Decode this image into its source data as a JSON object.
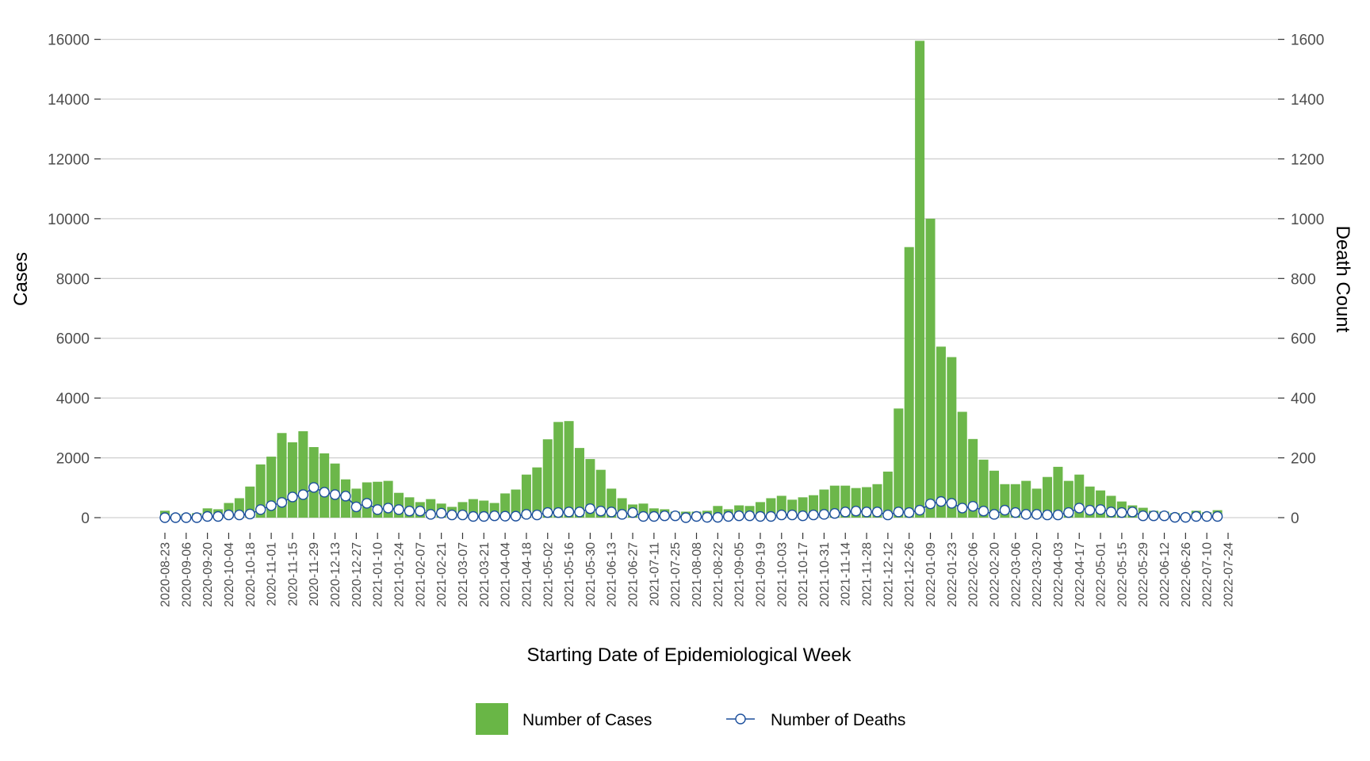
{
  "chart_data": {
    "type": "bar",
    "title": "",
    "xlabel": "Starting Date of Epidemiological Week",
    "ylabel": "Cases",
    "y2label": "Death Count",
    "ylim": [
      0,
      16000
    ],
    "y2lim": [
      0,
      1600
    ],
    "yticks": [
      0,
      2000,
      4000,
      6000,
      8000,
      10000,
      12000,
      14000,
      16000
    ],
    "y2ticks": [
      0,
      200,
      400,
      600,
      800,
      1000,
      1200,
      1400,
      1600
    ],
    "grid": true,
    "legend_position": "bottom",
    "xtick_labels": [
      "2020-08-23",
      "2020-09-06",
      "2020-09-20",
      "2020-10-04",
      "2020-10-18",
      "2020-11-01",
      "2020-11-15",
      "2020-11-29",
      "2020-12-13",
      "2020-12-27",
      "2021-01-10",
      "2021-01-24",
      "2021-02-07",
      "2021-02-21",
      "2021-03-07",
      "2021-03-21",
      "2021-04-04",
      "2021-04-18",
      "2021-05-02",
      "2021-05-16",
      "2021-05-30",
      "2021-06-13",
      "2021-06-27",
      "2021-07-11",
      "2021-07-25",
      "2021-08-08",
      "2021-08-22",
      "2021-09-05",
      "2021-09-19",
      "2021-10-03",
      "2021-10-17",
      "2021-10-31",
      "2021-11-14",
      "2021-11-28",
      "2021-12-12",
      "2021-12-26",
      "2022-01-09",
      "2022-01-23",
      "2022-02-06",
      "2022-02-20",
      "2022-03-06",
      "2022-03-20",
      "2022-04-03",
      "2022-04-17",
      "2022-05-01",
      "2022-05-15",
      "2022-05-29",
      "2022-06-12",
      "2022-06-26",
      "2022-07-10",
      "2022-07-24"
    ],
    "series": [
      {
        "name": "Number of Cases",
        "type": "bar",
        "axis": "left",
        "color": "#69b646",
        "values": [
          230,
          120,
          120,
          150,
          310,
          280,
          490,
          650,
          1040,
          1780,
          2040,
          2830,
          2520,
          2890,
          2360,
          2150,
          1810,
          1280,
          970,
          1180,
          1200,
          1230,
          830,
          680,
          520,
          620,
          470,
          360,
          520,
          620,
          570,
          490,
          810,
          940,
          1440,
          1680,
          2620,
          3200,
          3230,
          2330,
          1960,
          1600,
          970,
          650,
          440,
          470,
          310,
          280,
          200,
          200,
          200,
          230,
          390,
          280,
          410,
          390,
          520,
          650,
          730,
          600,
          680,
          750,
          940,
          1070,
          1070,
          990,
          1020,
          1120,
          1540,
          3650,
          9050,
          15950,
          10000,
          5720,
          5370,
          3540,
          2630,
          1940,
          1570,
          1120,
          1120,
          1230,
          970,
          1360,
          1700,
          1230,
          1440,
          1040,
          910,
          730,
          540,
          410,
          330,
          230,
          200,
          150,
          120,
          230,
          180,
          250
        ]
      },
      {
        "name": "Number of Deaths",
        "type": "line",
        "axis": "right",
        "color": "#1c4f9c",
        "values": [
          0,
          0,
          0,
          0,
          4,
          4,
          9,
          9,
          12,
          27,
          40,
          51,
          69,
          77,
          101,
          85,
          77,
          72,
          36,
          48,
          27,
          32,
          27,
          22,
          22,
          11,
          15,
          9,
          9,
          4,
          4,
          6,
          5,
          5,
          11,
          9,
          17,
          17,
          19,
          19,
          30,
          22,
          19,
          11,
          17,
          4,
          4,
          6,
          6,
          0,
          4,
          1,
          1,
          4,
          6,
          6,
          4,
          4,
          9,
          9,
          6,
          9,
          11,
          14,
          19,
          22,
          19,
          19,
          9,
          19,
          17,
          25,
          46,
          54,
          48,
          32,
          38,
          22,
          11,
          25,
          17,
          11,
          11,
          9,
          9,
          17,
          32,
          25,
          27,
          19,
          17,
          19,
          6,
          6,
          6,
          1,
          1,
          4,
          4,
          4
        ]
      }
    ]
  },
  "colors": {
    "grid": "#d0d0d0",
    "axis_text": "#4d4d4d"
  }
}
